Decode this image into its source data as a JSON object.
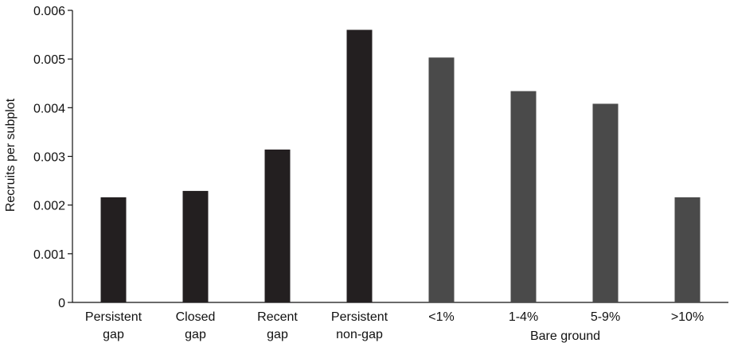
{
  "chart_data": {
    "type": "bar",
    "title": "",
    "xlabel": "",
    "ylabel": "Recruits per subplot",
    "ylim": [
      0,
      0.006
    ],
    "yticks": [
      "0",
      "0.001",
      "0.002",
      "0.003",
      "0.004",
      "0.005",
      "0.006"
    ],
    "ytick_values": [
      0,
      0.001,
      0.002,
      0.003,
      0.004,
      0.005,
      0.006
    ],
    "grid": false,
    "legend": "none",
    "categories": [
      [
        "Persistent",
        "gap"
      ],
      [
        "Closed",
        "gap"
      ],
      [
        "Recent",
        "gap"
      ],
      [
        "Persistent",
        "non-gap"
      ],
      [
        "<1%"
      ],
      [
        "1-4%"
      ],
      [
        "5-9%"
      ],
      [
        ">10%"
      ]
    ],
    "values": [
      0.00216,
      0.00229,
      0.00314,
      0.0056,
      0.00503,
      0.00434,
      0.00408,
      0.00216
    ],
    "bar_colors": [
      "#231f20",
      "#231f20",
      "#231f20",
      "#231f20",
      "#4a4a4a",
      "#4a4a4a",
      "#4a4a4a",
      "#4a4a4a"
    ],
    "group_label": "Bare ground"
  }
}
